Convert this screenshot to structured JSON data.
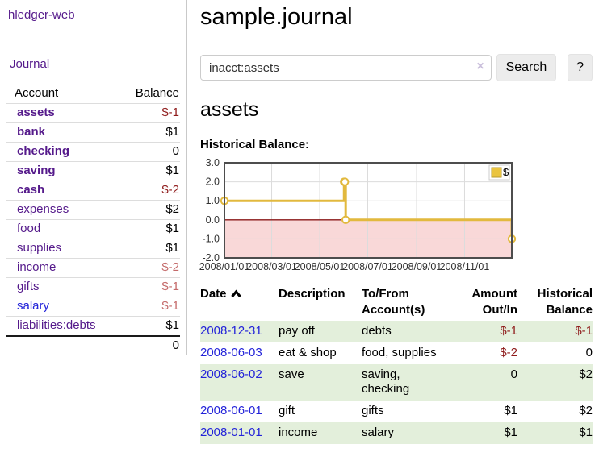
{
  "colors": {
    "link_purple": "#551a8b",
    "link_blue": "#2323d9",
    "negative_dark": "#8f1b1b",
    "negative_light": "#c46a6a",
    "stripe_green": "#e3efdb",
    "chart_gold": "#e2b93e",
    "chart_negative_bg": "#f9d8d8"
  },
  "sidebar": {
    "brand": "hledger-web",
    "journal_link": "Journal",
    "accounts": {
      "header": {
        "account": "Account",
        "balance": "Balance"
      },
      "rows": [
        {
          "name": "assets",
          "balance": "$-1"
        },
        {
          "name": "bank",
          "balance": "$1"
        },
        {
          "name": "checking",
          "balance": "0"
        },
        {
          "name": "saving",
          "balance": "$1"
        },
        {
          "name": "cash",
          "balance": "$-2"
        },
        {
          "name": "expenses",
          "balance": "$2"
        },
        {
          "name": "food",
          "balance": "$1"
        },
        {
          "name": "supplies",
          "balance": "$1"
        },
        {
          "name": "income",
          "balance": "$-2"
        },
        {
          "name": "gifts",
          "balance": "$-1"
        },
        {
          "name": "salary",
          "balance": "$-1"
        },
        {
          "name": "liabilities:debts",
          "balance": "$1"
        }
      ],
      "total": "0"
    }
  },
  "main": {
    "title": "sample.journal",
    "search": {
      "value": "inacct:assets",
      "clear_label": "×",
      "search_button": "Search",
      "help_button": "?"
    },
    "account_heading": "assets",
    "section_label": "Historical Balance:",
    "register": {
      "header": {
        "date": "Date",
        "description": "Description",
        "tofrom_line1": "To/From",
        "tofrom_line2": "Account(s)",
        "amount_line1": "Amount",
        "amount_line2": "Out/In",
        "balance_line1": "Historical",
        "balance_line2": "Balance"
      },
      "rows": [
        {
          "date": "2008-12-31",
          "description": "pay off",
          "accounts": "debts",
          "amount": "$-1",
          "balance": "$-1"
        },
        {
          "date": "2008-06-03",
          "description": "eat & shop",
          "accounts": "food, supplies",
          "amount": "$-2",
          "balance": "0"
        },
        {
          "date": "2008-06-02",
          "description": "save",
          "accounts": "saving, checking",
          "amount": "0",
          "balance": "$2"
        },
        {
          "date": "2008-06-01",
          "description": "gift",
          "accounts": "gifts",
          "amount": "$1",
          "balance": "$2"
        },
        {
          "date": "2008-01-01",
          "description": "income",
          "accounts": "salary",
          "amount": "$1",
          "balance": "$1"
        }
      ]
    }
  },
  "chart_data": {
    "type": "line",
    "title": "Historical Balance",
    "step": true,
    "x_range_days": [
      0,
      365
    ],
    "ylim": [
      -2,
      3
    ],
    "y_ticks": [
      "3.0",
      "2.0",
      "1.0",
      "0.0",
      "-1.0",
      "-2.0"
    ],
    "x_ticks": [
      {
        "day": 0,
        "label": "2008/01/01"
      },
      {
        "day": 60,
        "label": "2008/03/01"
      },
      {
        "day": 121,
        "label": "2008/05/01"
      },
      {
        "day": 182,
        "label": "2008/07/01"
      },
      {
        "day": 244,
        "label": "2008/09/01"
      },
      {
        "day": 305,
        "label": "2008/11/01"
      }
    ],
    "series": [
      {
        "name": "$",
        "color": "#e2b93e",
        "points": [
          {
            "date": "2008-01-01",
            "day": 0,
            "value": 1
          },
          {
            "date": "2008-06-01",
            "day": 152,
            "value": 2
          },
          {
            "date": "2008-06-02",
            "day": 153,
            "value": 2
          },
          {
            "date": "2008-06-03",
            "day": 154,
            "value": 0
          },
          {
            "date": "2008-12-31",
            "day": 365,
            "value": -1
          }
        ]
      }
    ],
    "zero_line_color": "#8b1a1a",
    "negative_fill": "#f9d8d8",
    "grid": true,
    "legend": {
      "label": "$",
      "swatch_color": "#eac43f",
      "position": "top-right"
    }
  }
}
